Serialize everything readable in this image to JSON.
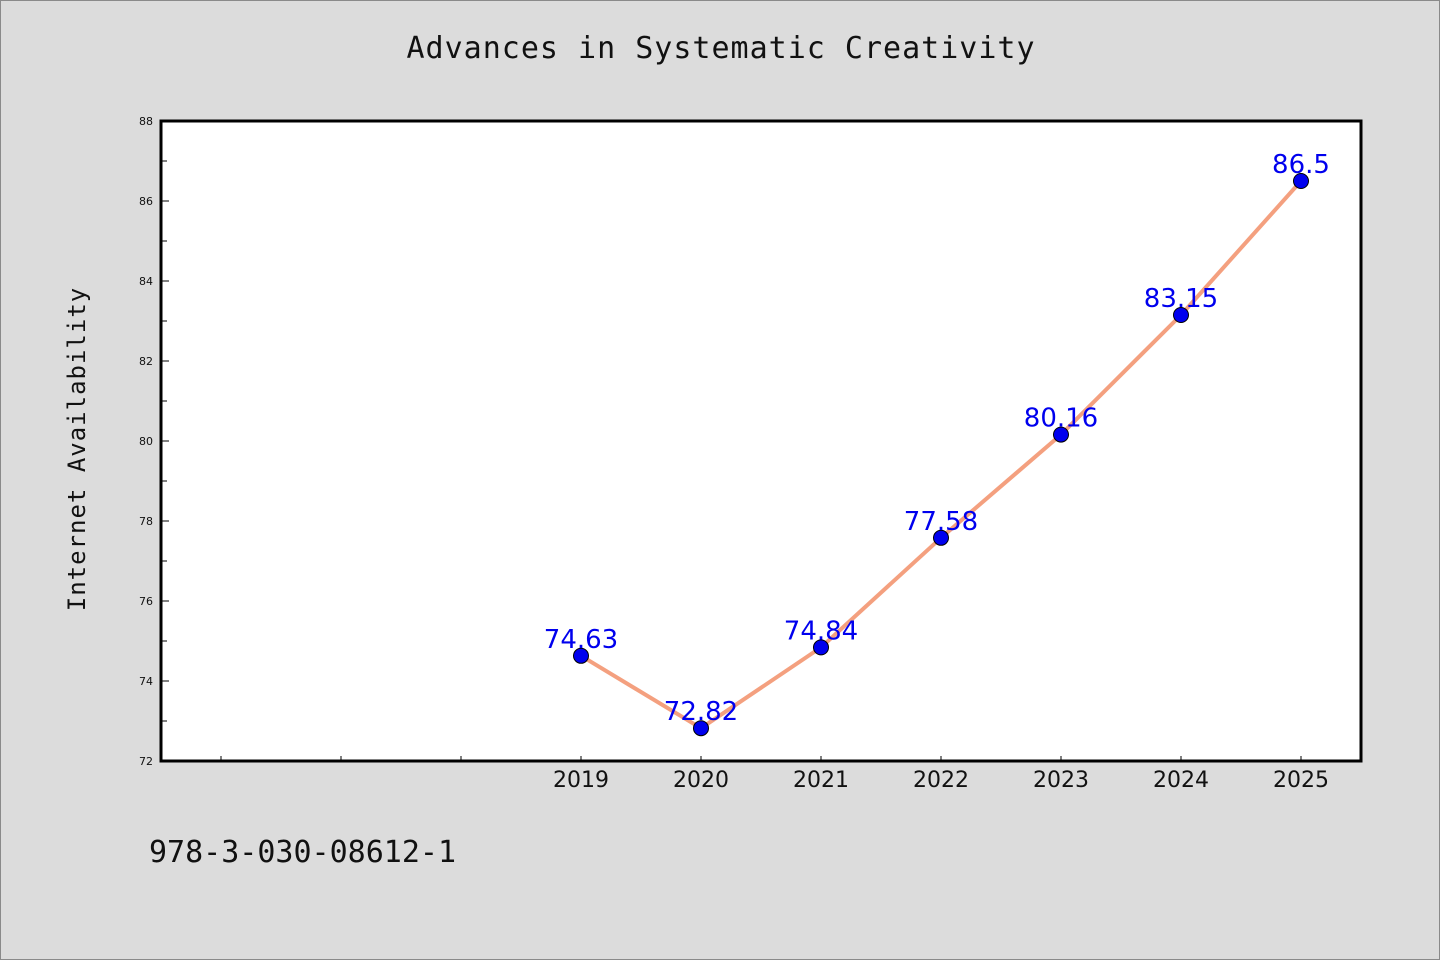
{
  "chart_data": {
    "type": "line",
    "title": "Advances in Systematic Creativity",
    "xlabel": "",
    "ylabel": "Internet Availability",
    "categories": [
      "2019",
      "2020",
      "2021",
      "2022",
      "2023",
      "2024",
      "2025"
    ],
    "series": [
      {
        "values": [
          74.63,
          72.82,
          74.84,
          77.58,
          80.16,
          83.15,
          86.5
        ],
        "labels": [
          "74.63",
          "72.82",
          "74.84",
          "77.58",
          "80.16",
          "83.15",
          "86.5"
        ]
      }
    ],
    "yticks": [
      "72",
      "74",
      "76",
      "78",
      "80",
      "82",
      "84",
      "86",
      "88"
    ],
    "ylim": [
      72,
      88
    ],
    "grid": false,
    "legend": "none",
    "colors": {
      "line": "#f4a07f",
      "marker": "#0000ee",
      "data_label": "#0000ee",
      "background": "#dcdcdc",
      "plot_area": "#ffffff"
    }
  },
  "footer": {
    "code": "978-3-030-08612-1"
  }
}
